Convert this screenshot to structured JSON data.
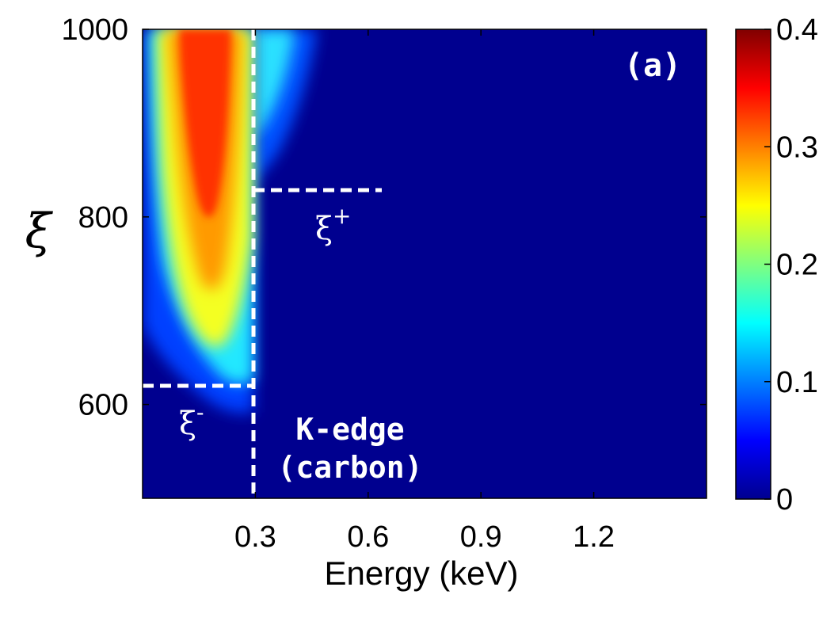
{
  "chart_data": {
    "type": "heatmap",
    "title": "",
    "xlabel": "Energy (keV)",
    "ylabel": "ξ",
    "xlim": [
      0,
      1.5
    ],
    "ylim": [
      500,
      1000
    ],
    "x_ticks": [
      0.3,
      0.6,
      0.9,
      1.2
    ],
    "x_tick_labels": [
      "0.3",
      "0.6",
      "0.9",
      "1.2"
    ],
    "y_ticks": [
      600,
      800,
      1000
    ],
    "y_tick_labels": [
      "600",
      "800",
      "1000"
    ],
    "colorbar": {
      "range": [
        0,
        0.4
      ],
      "ticks": [
        0,
        0.1,
        0.2,
        0.3,
        0.4
      ],
      "tick_labels": [
        "0",
        "0.1",
        "0.2",
        "0.3",
        "0.4"
      ],
      "colormap": "jet"
    },
    "peak_value": 0.36,
    "peak_energy_keV": 0.17,
    "k_edge_energy_keV": 0.3,
    "xi_minus": 620,
    "xi_plus": 828,
    "annotations": {
      "panel_label": "(a)",
      "k_edge_line1": "K-edge",
      "k_edge_line2": "(carbon)",
      "xi_minus_base": "ξ",
      "xi_minus_sup": "-",
      "xi_plus_base": "ξ",
      "xi_plus_sup": "+"
    },
    "grid": false
  }
}
